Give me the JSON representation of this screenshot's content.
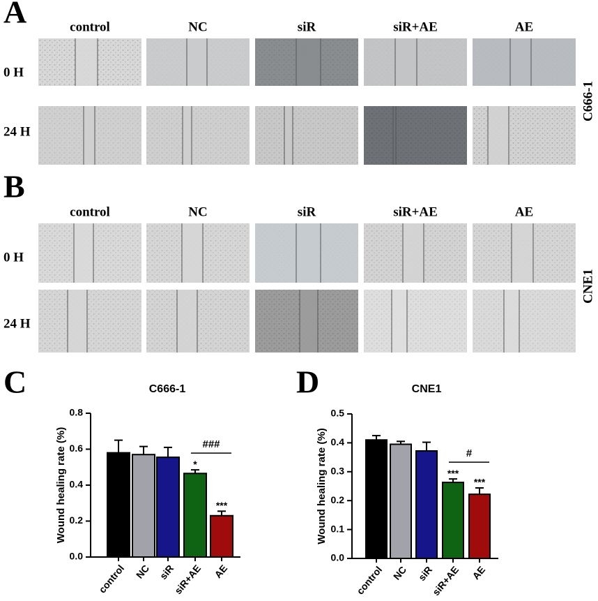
{
  "panels": [
    {
      "letter": "A",
      "columns": [
        "control",
        "NC",
        "siR",
        "siR+AE",
        "AE"
      ],
      "rows": [
        "0 H",
        "24 H"
      ],
      "cell_line": "C666-1"
    },
    {
      "letter": "B",
      "columns": [
        "control",
        "NC",
        "siR",
        "siR+AE",
        "AE"
      ],
      "rows": [
        "0 H",
        "24 H"
      ],
      "cell_line": "CNE1"
    }
  ],
  "chart_data": [
    {
      "type": "bar",
      "panel_label": "C",
      "title": "C666-1",
      "y_label": "Wound healing rate (%)",
      "categories": [
        "control",
        "NC",
        "siR",
        "siR+AE",
        "AE"
      ],
      "values": [
        0.58,
        0.57,
        0.555,
        0.465,
        0.23
      ],
      "errors": [
        0.07,
        0.045,
        0.055,
        0.02,
        0.025
      ],
      "colors": [
        "#000000",
        "#a2a2aa",
        "#16168a",
        "#0f6414",
        "#a00c0c"
      ],
      "ylim": [
        0,
        0.8
      ],
      "yticks": [
        {
          "value": 0,
          "label": "0.0"
        },
        0.2,
        0.4,
        0.6,
        0.8
      ],
      "annotations": [
        {
          "text": "*",
          "at": "siR+AE"
        },
        {
          "text": "***",
          "at": "AE"
        }
      ],
      "brackets": [
        {
          "text": "###",
          "from": "siR+AE",
          "to": "AE"
        }
      ]
    },
    {
      "type": "bar",
      "panel_label": "D",
      "title": "CNE1",
      "y_label": "Wound healing rate (%)",
      "categories": [
        "control",
        "NC",
        "siR",
        "siR+AE",
        "AE"
      ],
      "values": [
        0.41,
        0.395,
        0.372,
        0.263,
        0.222
      ],
      "errors": [
        0.015,
        0.01,
        0.03,
        0.012,
        0.022
      ],
      "colors": [
        "#000000",
        "#a2a2aa",
        "#16168a",
        "#0f6414",
        "#a00c0c"
      ],
      "ylim": [
        0,
        0.5
      ],
      "yticks": [
        {
          "value": 0,
          "label": "0.0"
        },
        0.1,
        0.2,
        0.3,
        0.4,
        0.5
      ],
      "annotations": [
        {
          "text": "***",
          "at": "siR+AE"
        },
        {
          "text": "***",
          "at": "AE"
        }
      ],
      "brackets": [
        {
          "text": "#",
          "from": "siR+AE",
          "to": "AE"
        }
      ]
    }
  ]
}
